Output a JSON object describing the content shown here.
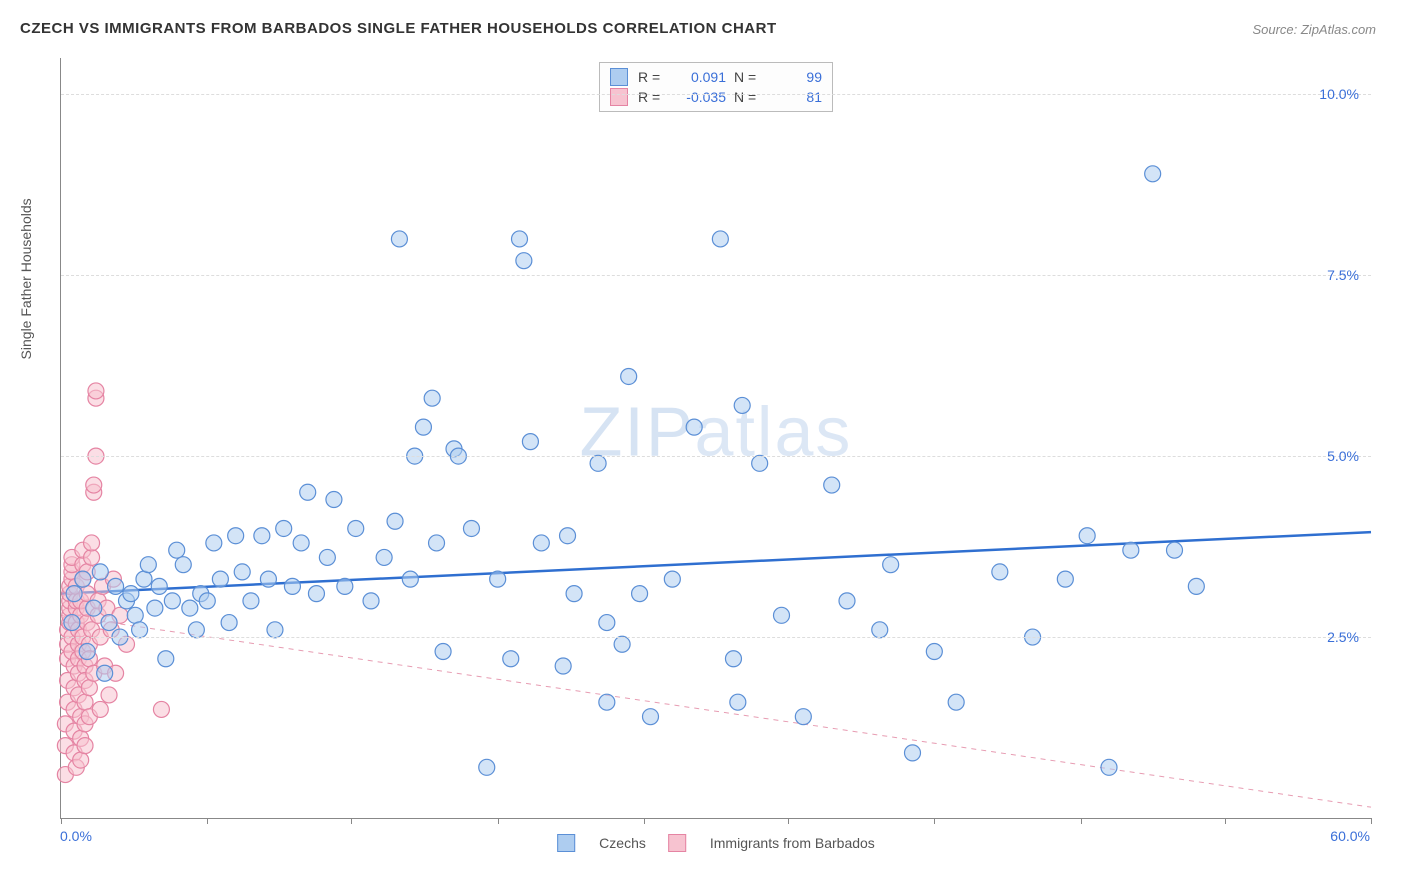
{
  "title": "CZECH VS IMMIGRANTS FROM BARBADOS SINGLE FATHER HOUSEHOLDS CORRELATION CHART",
  "source": "Source: ZipAtlas.com",
  "watermark_a": "ZIP",
  "watermark_b": "atlas",
  "chart": {
    "type": "scatter",
    "background_color": "#ffffff",
    "grid_color": "#dddddd",
    "axis_color": "#888888",
    "label_color": "#555555",
    "tick_label_color": "#3a6fd8",
    "title_fontsize": 15,
    "label_fontsize": 14,
    "y_axis_label": "Single Father Households",
    "xlim": [
      0,
      60
    ],
    "ylim": [
      0,
      10.5
    ],
    "x_ticks": [
      0,
      6.7,
      13.3,
      20,
      26.7,
      33.3,
      40,
      46.7,
      53.3,
      60
    ],
    "y_ticks": [
      2.5,
      5.0,
      7.5,
      10.0
    ],
    "y_tick_labels": [
      "2.5%",
      "5.0%",
      "7.5%",
      "10.0%"
    ],
    "x_min_label": "0.0%",
    "x_max_label": "60.0%",
    "marker_radius": 8,
    "marker_fill_opacity": 0.55,
    "marker_stroke_width": 1.2,
    "series": [
      {
        "name": "Czechs",
        "color_fill": "#aecdf0",
        "color_stroke": "#5b8fd6",
        "R": "0.091",
        "N": "99",
        "trend": {
          "color": "#2f6fd0",
          "width": 2.5,
          "dash": "none",
          "y_at_x0": 3.1,
          "y_at_xmax": 3.95
        },
        "points": [
          [
            0.5,
            2.7
          ],
          [
            0.6,
            3.1
          ],
          [
            1.0,
            3.3
          ],
          [
            1.2,
            2.3
          ],
          [
            1.5,
            2.9
          ],
          [
            1.8,
            3.4
          ],
          [
            2.0,
            2.0
          ],
          [
            2.2,
            2.7
          ],
          [
            2.5,
            3.2
          ],
          [
            2.7,
            2.5
          ],
          [
            3.0,
            3.0
          ],
          [
            3.2,
            3.1
          ],
          [
            3.4,
            2.8
          ],
          [
            3.6,
            2.6
          ],
          [
            3.8,
            3.3
          ],
          [
            4.0,
            3.5
          ],
          [
            4.3,
            2.9
          ],
          [
            4.5,
            3.2
          ],
          [
            4.8,
            2.2
          ],
          [
            5.1,
            3.0
          ],
          [
            5.3,
            3.7
          ],
          [
            5.6,
            3.5
          ],
          [
            5.9,
            2.9
          ],
          [
            6.2,
            2.6
          ],
          [
            6.4,
            3.1
          ],
          [
            6.7,
            3.0
          ],
          [
            7.0,
            3.8
          ],
          [
            7.3,
            3.3
          ],
          [
            7.7,
            2.7
          ],
          [
            8.0,
            3.9
          ],
          [
            8.3,
            3.4
          ],
          [
            8.7,
            3.0
          ],
          [
            9.2,
            3.9
          ],
          [
            9.5,
            3.3
          ],
          [
            9.8,
            2.6
          ],
          [
            10.2,
            4.0
          ],
          [
            10.6,
            3.2
          ],
          [
            11.0,
            3.8
          ],
          [
            11.3,
            4.5
          ],
          [
            11.7,
            3.1
          ],
          [
            12.2,
            3.6
          ],
          [
            12.5,
            4.4
          ],
          [
            13.0,
            3.2
          ],
          [
            13.5,
            4.0
          ],
          [
            14.2,
            3.0
          ],
          [
            14.8,
            3.6
          ],
          [
            15.3,
            4.1
          ],
          [
            15.5,
            8.0
          ],
          [
            16.0,
            3.3
          ],
          [
            16.2,
            5.0
          ],
          [
            16.6,
            5.4
          ],
          [
            17.0,
            5.8
          ],
          [
            17.2,
            3.8
          ],
          [
            17.5,
            2.3
          ],
          [
            18.0,
            5.1
          ],
          [
            18.2,
            5.0
          ],
          [
            18.8,
            4.0
          ],
          [
            19.5,
            0.7
          ],
          [
            20.0,
            3.3
          ],
          [
            20.6,
            2.2
          ],
          [
            21.0,
            8.0
          ],
          [
            21.2,
            7.7
          ],
          [
            21.5,
            5.2
          ],
          [
            22.0,
            3.8
          ],
          [
            23.0,
            2.1
          ],
          [
            23.2,
            3.9
          ],
          [
            23.5,
            3.1
          ],
          [
            24.6,
            4.9
          ],
          [
            25.0,
            1.6
          ],
          [
            25.0,
            2.7
          ],
          [
            25.7,
            2.4
          ],
          [
            26.0,
            6.1
          ],
          [
            26.5,
            3.1
          ],
          [
            27.0,
            1.4
          ],
          [
            28.0,
            3.3
          ],
          [
            29.0,
            5.4
          ],
          [
            30.2,
            8.0
          ],
          [
            30.8,
            2.2
          ],
          [
            31.0,
            1.6
          ],
          [
            31.2,
            5.7
          ],
          [
            32.0,
            4.9
          ],
          [
            33.0,
            2.8
          ],
          [
            34.0,
            1.4
          ],
          [
            35.3,
            4.6
          ],
          [
            36.0,
            3.0
          ],
          [
            37.5,
            2.6
          ],
          [
            38.0,
            3.5
          ],
          [
            39.0,
            0.9
          ],
          [
            40.0,
            2.3
          ],
          [
            41.0,
            1.6
          ],
          [
            43.0,
            3.4
          ],
          [
            44.5,
            2.5
          ],
          [
            46.0,
            3.3
          ],
          [
            47.0,
            3.9
          ],
          [
            48.0,
            0.7
          ],
          [
            49.0,
            3.7
          ],
          [
            50.0,
            8.9
          ],
          [
            51.0,
            3.7
          ],
          [
            52.0,
            3.2
          ]
        ]
      },
      {
        "name": "Immigrants from Barbados",
        "color_fill": "#f7c3d0",
        "color_stroke": "#e584a3",
        "R": "-0.035",
        "N": "81",
        "trend": {
          "color": "#e79cb2",
          "width": 1,
          "dash": "5,5",
          "y_at_x0": 2.8,
          "y_at_xmax": 0.15
        },
        "points": [
          [
            0.2,
            0.6
          ],
          [
            0.2,
            1.0
          ],
          [
            0.2,
            1.3
          ],
          [
            0.3,
            1.6
          ],
          [
            0.3,
            1.9
          ],
          [
            0.3,
            2.2
          ],
          [
            0.3,
            2.4
          ],
          [
            0.3,
            2.6
          ],
          [
            0.4,
            2.7
          ],
          [
            0.4,
            2.8
          ],
          [
            0.4,
            2.9
          ],
          [
            0.4,
            3.0
          ],
          [
            0.4,
            3.1
          ],
          [
            0.4,
            3.2
          ],
          [
            0.5,
            3.3
          ],
          [
            0.5,
            3.4
          ],
          [
            0.5,
            3.5
          ],
          [
            0.5,
            3.6
          ],
          [
            0.5,
            2.5
          ],
          [
            0.5,
            2.3
          ],
          [
            0.6,
            2.1
          ],
          [
            0.6,
            1.8
          ],
          [
            0.6,
            1.5
          ],
          [
            0.6,
            1.2
          ],
          [
            0.6,
            0.9
          ],
          [
            0.7,
            0.7
          ],
          [
            0.7,
            2.7
          ],
          [
            0.7,
            2.9
          ],
          [
            0.7,
            3.0
          ],
          [
            0.7,
            3.2
          ],
          [
            0.8,
            2.6
          ],
          [
            0.8,
            2.4
          ],
          [
            0.8,
            2.2
          ],
          [
            0.8,
            2.0
          ],
          [
            0.8,
            1.7
          ],
          [
            0.9,
            1.4
          ],
          [
            0.9,
            1.1
          ],
          [
            0.9,
            0.8
          ],
          [
            0.9,
            2.8
          ],
          [
            0.9,
            3.0
          ],
          [
            1.0,
            3.3
          ],
          [
            1.0,
            3.5
          ],
          [
            1.0,
            3.7
          ],
          [
            1.0,
            2.5
          ],
          [
            1.0,
            2.3
          ],
          [
            1.1,
            2.1
          ],
          [
            1.1,
            1.9
          ],
          [
            1.1,
            1.6
          ],
          [
            1.1,
            1.3
          ],
          [
            1.1,
            1.0
          ],
          [
            1.2,
            2.7
          ],
          [
            1.2,
            2.9
          ],
          [
            1.2,
            3.1
          ],
          [
            1.2,
            3.4
          ],
          [
            1.3,
            2.4
          ],
          [
            1.3,
            2.2
          ],
          [
            1.3,
            1.8
          ],
          [
            1.3,
            1.4
          ],
          [
            1.4,
            3.6
          ],
          [
            1.4,
            3.8
          ],
          [
            1.4,
            2.6
          ],
          [
            1.5,
            2.0
          ],
          [
            1.5,
            4.5
          ],
          [
            1.5,
            4.6
          ],
          [
            1.6,
            5.0
          ],
          [
            1.6,
            5.8
          ],
          [
            1.6,
            5.9
          ],
          [
            1.7,
            2.8
          ],
          [
            1.7,
            3.0
          ],
          [
            1.8,
            2.5
          ],
          [
            1.8,
            1.5
          ],
          [
            1.9,
            3.2
          ],
          [
            2.0,
            2.1
          ],
          [
            2.1,
            2.9
          ],
          [
            2.2,
            1.7
          ],
          [
            2.3,
            2.6
          ],
          [
            2.4,
            3.3
          ],
          [
            2.5,
            2.0
          ],
          [
            2.7,
            2.8
          ],
          [
            3.0,
            2.4
          ],
          [
            4.6,
            1.5
          ]
        ]
      }
    ],
    "legend_bottom": [
      {
        "label": "Czechs",
        "swatch": "blue"
      },
      {
        "label": "Immigrants from Barbados",
        "swatch": "pink"
      }
    ]
  }
}
